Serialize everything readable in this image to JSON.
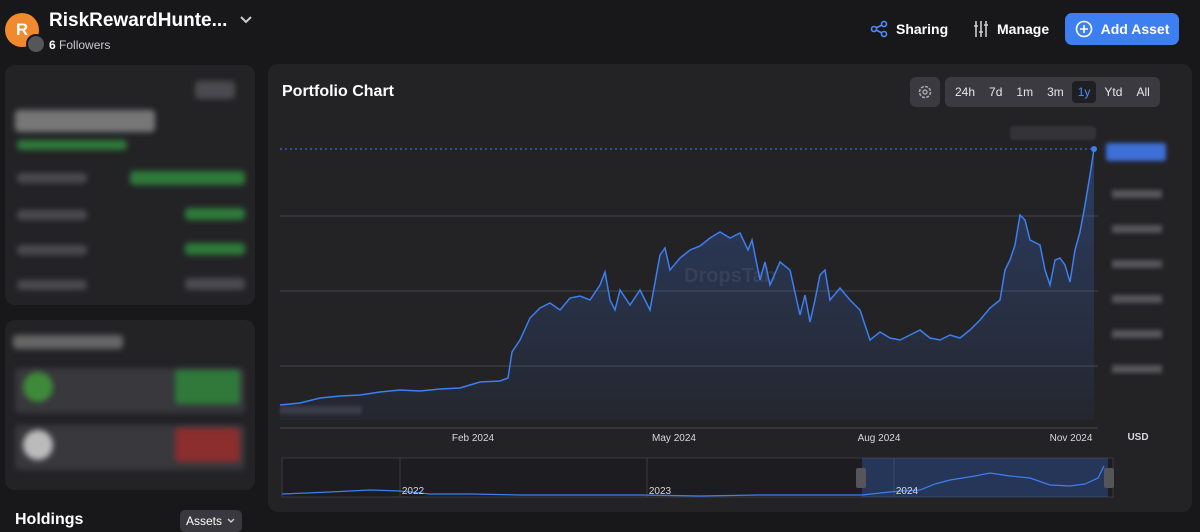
{
  "header": {
    "name": "RiskRewardHunte...",
    "avatar_letter": "R",
    "followers_count": "6",
    "followers_label": "Followers",
    "actions": [
      "Sharing",
      "Manage",
      "Add Asset"
    ]
  },
  "sidebar": {
    "holdings": "Holdings",
    "assets_filter": "Assets"
  },
  "chart": {
    "title": "Portfolio Chart",
    "ranges": [
      "24h",
      "7d",
      "1m",
      "3m",
      "1y",
      "Ytd",
      "All"
    ],
    "watermark": "DropsTab",
    "x_labels": [
      "Feb 2024",
      "May 2024",
      "Aug 2024",
      "Nov 2024"
    ],
    "currency": "USD",
    "navigator_labels": [
      "2022",
      "2023",
      "2024"
    ]
  }
}
